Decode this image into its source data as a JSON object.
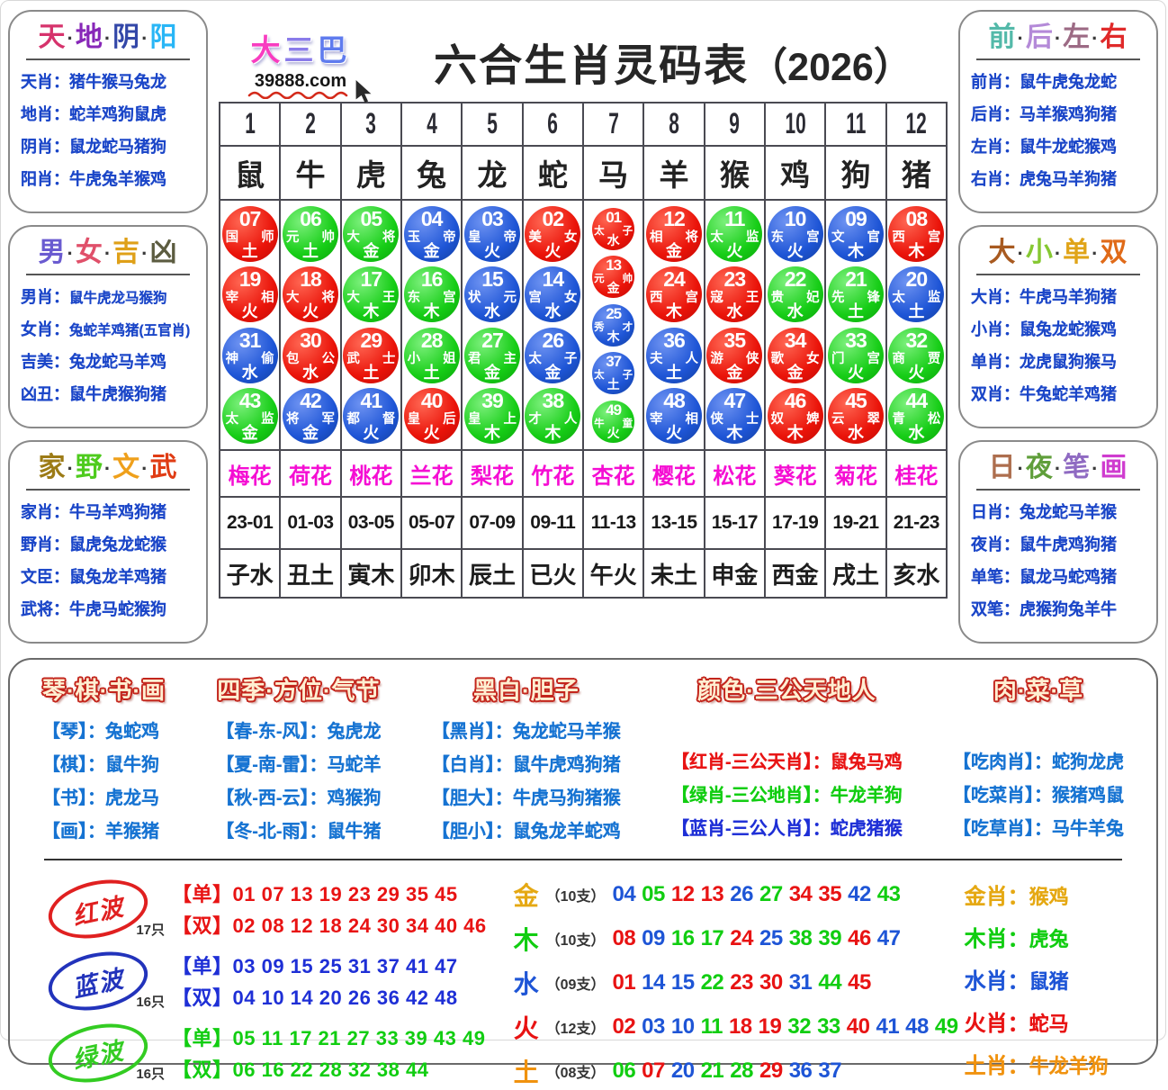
{
  "dot": "·",
  "palette": {
    "red": "#e81313",
    "green": "#11cd11",
    "blue": "#1e55d6",
    "gold": "#e5a812",
    "orange": "#f0920e",
    "magenta": "#f50dd3",
    "panel_text": "#1b46c8"
  },
  "logo": {
    "chars": [
      {
        "t": "大",
        "c": "#f83dc0"
      },
      {
        "t": "三",
        "c": "#8a7bea"
      },
      {
        "t": "巴",
        "c": "#5f7bee"
      }
    ],
    "url": "39888.com"
  },
  "title": {
    "main": "六合生肖灵码表",
    "year": "（2026）"
  },
  "side_panels": {
    "left": [
      {
        "title_chars": [
          {
            "t": "天",
            "c": "#d6336c"
          },
          {
            "t": "地",
            "c": "#8727b8"
          },
          {
            "t": "阴",
            "c": "#3347a8"
          },
          {
            "t": "阳",
            "c": "#29b6f6"
          }
        ],
        "rows": [
          {
            "label": "天肖：",
            "value": "猪牛猴马兔龙"
          },
          {
            "label": "地肖：",
            "value": "蛇羊鸡狗鼠虎"
          },
          {
            "label": "阴肖：",
            "value": "鼠龙蛇马猪狗"
          },
          {
            "label": "阳肖：",
            "value": "牛虎兔羊猴鸡"
          }
        ]
      },
      {
        "title_chars": [
          {
            "t": "男",
            "c": "#6a5bd0"
          },
          {
            "t": "女",
            "c": "#e0506a"
          },
          {
            "t": "吉",
            "c": "#dfa018"
          },
          {
            "t": "凶",
            "c": "#5c5c40"
          }
        ],
        "rows": [
          {
            "label": "男肖：",
            "value": "鼠牛虎龙马猴狗"
          },
          {
            "label": "女肖：",
            "value": "兔蛇羊鸡猪(五官肖)"
          },
          {
            "label": "吉美：",
            "value": "兔龙蛇马羊鸡"
          },
          {
            "label": "凶丑：",
            "value": "鼠牛虎猴狗猪"
          }
        ]
      },
      {
        "title_chars": [
          {
            "t": "家",
            "c": "#9c7b16"
          },
          {
            "t": "野",
            "c": "#4ecb1d"
          },
          {
            "t": "文",
            "c": "#efa01b"
          },
          {
            "t": "武",
            "c": "#e03c14"
          }
        ],
        "rows": [
          {
            "label": "家肖：",
            "value": "牛马羊鸡狗猪"
          },
          {
            "label": "野肖：",
            "value": "鼠虎兔龙蛇猴"
          },
          {
            "label": "文臣：",
            "value": "鼠兔龙羊鸡猪"
          },
          {
            "label": "武将：",
            "value": "牛虎马蛇猴狗"
          }
        ]
      }
    ],
    "right": [
      {
        "title_chars": [
          {
            "t": "前",
            "c": "#53b9a9"
          },
          {
            "t": "后",
            "c": "#b48ad8"
          },
          {
            "t": "左",
            "c": "#9c6a84"
          },
          {
            "t": "右",
            "c": "#e02a2a"
          }
        ],
        "rows": [
          {
            "label": "前肖：",
            "value": "鼠牛虎兔龙蛇"
          },
          {
            "label": "后肖：",
            "value": "马羊猴鸡狗猪"
          },
          {
            "label": "左肖：",
            "value": "鼠牛龙蛇猴鸡"
          },
          {
            "label": "右肖：",
            "value": "虎兔马羊狗猪"
          }
        ]
      },
      {
        "title_chars": [
          {
            "t": "大",
            "c": "#a85a20"
          },
          {
            "t": "小",
            "c": "#86c832"
          },
          {
            "t": "单",
            "c": "#e0a418"
          },
          {
            "t": "双",
            "c": "#e06a18"
          }
        ],
        "rows": [
          {
            "label": "大肖：",
            "value": "牛虎马羊狗猪"
          },
          {
            "label": "小肖：",
            "value": "鼠兔龙蛇猴鸡"
          },
          {
            "label": "单肖：",
            "value": "龙虎鼠狗猴马"
          },
          {
            "label": "双肖：",
            "value": "牛兔蛇羊鸡猪"
          }
        ]
      },
      {
        "title_chars": [
          {
            "t": "日",
            "c": "#ad6e4e"
          },
          {
            "t": "夜",
            "c": "#5f9e3a"
          },
          {
            "t": "笔",
            "c": "#8f6ac2"
          },
          {
            "t": "画",
            "c": "#cf3ccf"
          }
        ],
        "rows": [
          {
            "label": "日肖：",
            "value": "兔龙蛇马羊猴"
          },
          {
            "label": "夜肖：",
            "value": "鼠牛虎鸡狗猪"
          },
          {
            "label": "单笔：",
            "value": "鼠龙马蛇鸡猪"
          },
          {
            "label": "双笔：",
            "value": "虎猴狗兔羊牛"
          }
        ]
      }
    ]
  },
  "table": {
    "columns": [
      {
        "num": "1",
        "zodiac": "鼠",
        "flower": "梅花",
        "time": "23-01",
        "branch": "子水",
        "balls": [
          {
            "n": "07",
            "w": "red",
            "t": "国师",
            "e": "土"
          },
          {
            "n": "19",
            "w": "red",
            "t": "宰相",
            "e": "火"
          },
          {
            "n": "31",
            "w": "blue",
            "t": "神偷",
            "e": "水"
          },
          {
            "n": "43",
            "w": "green",
            "t": "太监",
            "e": "金"
          }
        ]
      },
      {
        "num": "2",
        "zodiac": "牛",
        "flower": "荷花",
        "time": "01-03",
        "branch": "丑土",
        "balls": [
          {
            "n": "06",
            "w": "green",
            "t": "元帅",
            "e": "土"
          },
          {
            "n": "18",
            "w": "red",
            "t": "大将",
            "e": "火"
          },
          {
            "n": "30",
            "w": "red",
            "t": "包公",
            "e": "水"
          },
          {
            "n": "42",
            "w": "blue",
            "t": "将军",
            "e": "金"
          }
        ]
      },
      {
        "num": "3",
        "zodiac": "虎",
        "flower": "桃花",
        "time": "03-05",
        "branch": "寅木",
        "balls": [
          {
            "n": "05",
            "w": "green",
            "t": "大将",
            "e": "金"
          },
          {
            "n": "17",
            "w": "green",
            "t": "大王",
            "e": "木"
          },
          {
            "n": "29",
            "w": "red",
            "t": "武士",
            "e": "土"
          },
          {
            "n": "41",
            "w": "blue",
            "t": "都督",
            "e": "火"
          }
        ]
      },
      {
        "num": "4",
        "zodiac": "兔",
        "flower": "兰花",
        "time": "05-07",
        "branch": "卯木",
        "balls": [
          {
            "n": "04",
            "w": "blue",
            "t": "玉帝",
            "e": "金"
          },
          {
            "n": "16",
            "w": "green",
            "t": "东宫",
            "e": "木"
          },
          {
            "n": "28",
            "w": "green",
            "t": "小姐",
            "e": "土"
          },
          {
            "n": "40",
            "w": "red",
            "t": "皇后",
            "e": "火"
          }
        ]
      },
      {
        "num": "5",
        "zodiac": "龙",
        "flower": "梨花",
        "time": "07-09",
        "branch": "辰土",
        "balls": [
          {
            "n": "03",
            "w": "blue",
            "t": "皇帝",
            "e": "火"
          },
          {
            "n": "15",
            "w": "blue",
            "t": "状元",
            "e": "水"
          },
          {
            "n": "27",
            "w": "green",
            "t": "君主",
            "e": "金"
          },
          {
            "n": "39",
            "w": "green",
            "t": "皇上",
            "e": "木"
          }
        ]
      },
      {
        "num": "6",
        "zodiac": "蛇",
        "flower": "竹花",
        "time": "09-11",
        "branch": "已火",
        "balls": [
          {
            "n": "02",
            "w": "red",
            "t": "美女",
            "e": "火"
          },
          {
            "n": "14",
            "w": "blue",
            "t": "宫女",
            "e": "水"
          },
          {
            "n": "26",
            "w": "blue",
            "t": "太子",
            "e": "金"
          },
          {
            "n": "38",
            "w": "green",
            "t": "才人",
            "e": "木"
          }
        ]
      },
      {
        "num": "7",
        "zodiac": "马",
        "flower": "杏花",
        "time": "11-13",
        "branch": "午火",
        "small": true,
        "balls": [
          {
            "n": "01",
            "w": "red",
            "t": "太子",
            "e": "水"
          },
          {
            "n": "13",
            "w": "red",
            "t": "元帅",
            "e": "金"
          },
          {
            "n": "25",
            "w": "blue",
            "t": "秀才",
            "e": "木"
          },
          {
            "n": "37",
            "w": "blue",
            "t": "太子",
            "e": "土"
          },
          {
            "n": "49",
            "w": "green",
            "t": "牛童",
            "e": "火"
          }
        ]
      },
      {
        "num": "8",
        "zodiac": "羊",
        "flower": "樱花",
        "time": "13-15",
        "branch": "未土",
        "balls": [
          {
            "n": "12",
            "w": "red",
            "t": "相将",
            "e": "金"
          },
          {
            "n": "24",
            "w": "red",
            "t": "西宫",
            "e": "木"
          },
          {
            "n": "36",
            "w": "blue",
            "t": "夫人",
            "e": "土"
          },
          {
            "n": "48",
            "w": "blue",
            "t": "宰相",
            "e": "火"
          }
        ]
      },
      {
        "num": "9",
        "zodiac": "猴",
        "flower": "松花",
        "time": "15-17",
        "branch": "申金",
        "balls": [
          {
            "n": "11",
            "w": "green",
            "t": "太监",
            "e": "火"
          },
          {
            "n": "23",
            "w": "red",
            "t": "寇王",
            "e": "水"
          },
          {
            "n": "35",
            "w": "red",
            "t": "游侠",
            "e": "金"
          },
          {
            "n": "47",
            "w": "blue",
            "t": "侠士",
            "e": "木"
          }
        ]
      },
      {
        "num": "10",
        "zodiac": "鸡",
        "flower": "葵花",
        "time": "17-19",
        "branch": "西金",
        "balls": [
          {
            "n": "10",
            "w": "blue",
            "t": "东宫",
            "e": "火"
          },
          {
            "n": "22",
            "w": "green",
            "t": "贵妃",
            "e": "水"
          },
          {
            "n": "34",
            "w": "red",
            "t": "歌女",
            "e": "金"
          },
          {
            "n": "46",
            "w": "red",
            "t": "奴婢",
            "e": "木"
          }
        ]
      },
      {
        "num": "11",
        "zodiac": "狗",
        "flower": "菊花",
        "time": "19-21",
        "branch": "戌土",
        "balls": [
          {
            "n": "09",
            "w": "blue",
            "t": "文官",
            "e": "木"
          },
          {
            "n": "21",
            "w": "green",
            "t": "先锋",
            "e": "土"
          },
          {
            "n": "33",
            "w": "green",
            "t": "门宫",
            "e": "火"
          },
          {
            "n": "45",
            "w": "red",
            "t": "云翠",
            "e": "水"
          }
        ]
      },
      {
        "num": "12",
        "zodiac": "猪",
        "flower": "桂花",
        "time": "21-23",
        "branch": "亥水",
        "balls": [
          {
            "n": "08",
            "w": "red",
            "t": "西宫",
            "e": "木"
          },
          {
            "n": "20",
            "w": "blue",
            "t": "太监",
            "e": "土"
          },
          {
            "n": "32",
            "w": "green",
            "t": "商贾",
            "e": "火"
          },
          {
            "n": "44",
            "w": "green",
            "t": "青松",
            "e": "水"
          }
        ]
      }
    ]
  },
  "bottom": {
    "panels": [
      {
        "title": "琴·棋·书·画",
        "rows": [
          {
            "label": "【琴】：",
            "value": "兔蛇鸡"
          },
          {
            "label": "【棋】：",
            "value": "鼠牛狗"
          },
          {
            "label": "【书】：",
            "value": "虎龙马"
          },
          {
            "label": "【画】：",
            "value": "羊猴猪"
          }
        ]
      },
      {
        "title": "四季·方位·气节",
        "rows": [
          {
            "label": "【春-东-风】：",
            "value": "兔虎龙"
          },
          {
            "label": "【夏-南-雷】：",
            "value": "马蛇羊"
          },
          {
            "label": "【秋-西-云】：",
            "value": "鸡猴狗"
          },
          {
            "label": "【冬-北-雨】：",
            "value": "鼠牛猪"
          }
        ]
      },
      {
        "title": "黑白·胆子",
        "rows": [
          {
            "label": "【黑肖】：",
            "value": "兔龙蛇马羊猴"
          },
          {
            "label": "【白肖】：",
            "value": "鼠牛虎鸡狗猪"
          },
          {
            "label": "【胆大】：",
            "value": "牛虎马狗猪猴"
          },
          {
            "label": "【胆小】：",
            "value": "鼠兔龙羊蛇鸡"
          }
        ]
      },
      {
        "title": "颜色·三公天地人",
        "rows": [
          {
            "label": "【红肖-三公天肖】：",
            "value": "鼠兔马鸡",
            "w": "red"
          },
          {
            "label": "【绿肖-三公地肖】：",
            "value": "牛龙羊狗",
            "w": "green"
          },
          {
            "label": "【蓝肖-三公人肖】：",
            "value": "蛇虎猪猴",
            "w": "blue"
          }
        ]
      },
      {
        "title": "肉·菜·草",
        "rows": [
          {
            "label": "【吃肉肖】：",
            "value": "蛇狗龙虎"
          },
          {
            "label": "【吃菜肖】：",
            "value": "猴猪鸡鼠"
          },
          {
            "label": "【吃草肖】：",
            "value": "马牛羊兔"
          }
        ]
      }
    ],
    "waves": [
      {
        "name": "红波",
        "count": "17只",
        "w": "red",
        "lines": [
          {
            "label": "【单】",
            "nums": "01 07 13 19 23 29 35 45"
          },
          {
            "label": "【双】",
            "nums": "02 08 12 18 24 30 34 40 46"
          }
        ]
      },
      {
        "name": "蓝波",
        "count": "16只",
        "w": "blue",
        "lines": [
          {
            "label": "【单】",
            "nums": "03 09 15 25 31 37 41 47"
          },
          {
            "label": "【双】",
            "nums": "04 10 14 20 26 36 42 48"
          }
        ]
      },
      {
        "name": "绿波",
        "count": "16只",
        "w": "green",
        "lines": [
          {
            "label": "【单】",
            "nums": "05 11 17 21 27 33 39 43 49"
          },
          {
            "label": "【双】",
            "nums": "06 16 22 28 32 38 44"
          }
        ]
      }
    ],
    "elements": [
      {
        "name": "金",
        "w": "gold",
        "count": "（10支）",
        "nums": [
          "04",
          "05",
          "12",
          "13",
          "26",
          "27",
          "34",
          "35",
          "42",
          "43"
        ]
      },
      {
        "name": "木",
        "w": "green",
        "count": "（10支）",
        "nums": [
          "08",
          "09",
          "16",
          "17",
          "24",
          "25",
          "38",
          "39",
          "46",
          "47"
        ]
      },
      {
        "name": "水",
        "w": "blue",
        "count": "（09支）",
        "nums": [
          "01",
          "14",
          "15",
          "22",
          "23",
          "30",
          "31",
          "44",
          "45"
        ]
      },
      {
        "name": "火",
        "w": "red",
        "count": "（12支）",
        "nums": [
          "02",
          "03",
          "10",
          "11",
          "18",
          "19",
          "32",
          "33",
          "40",
          "41",
          "48",
          "49"
        ]
      },
      {
        "name": "土",
        "w": "orange",
        "count": "（08支）",
        "nums": [
          "06",
          "07",
          "20",
          "21",
          "28",
          "29",
          "36",
          "37"
        ]
      }
    ],
    "element_zodiac": [
      {
        "label": "金肖：",
        "value": "猴鸡",
        "w": "gold"
      },
      {
        "label": "木肖：",
        "value": "虎兔",
        "w": "green"
      },
      {
        "label": "水肖：",
        "value": "鼠猪",
        "w": "blue"
      },
      {
        "label": "火肖：",
        "value": "蛇马",
        "w": "red"
      },
      {
        "label": "土肖：",
        "value": "牛龙羊狗",
        "w": "orange"
      }
    ],
    "wave_membership": {
      "red": [
        "01",
        "02",
        "07",
        "08",
        "12",
        "13",
        "18",
        "19",
        "23",
        "24",
        "29",
        "30",
        "34",
        "35",
        "40",
        "45",
        "46"
      ],
      "blue": [
        "03",
        "04",
        "09",
        "10",
        "14",
        "15",
        "20",
        "25",
        "26",
        "31",
        "36",
        "37",
        "41",
        "42",
        "47",
        "48"
      ],
      "green": [
        "05",
        "06",
        "11",
        "16",
        "17",
        "21",
        "22",
        "27",
        "28",
        "32",
        "33",
        "38",
        "39",
        "43",
        "44",
        "49"
      ]
    }
  }
}
